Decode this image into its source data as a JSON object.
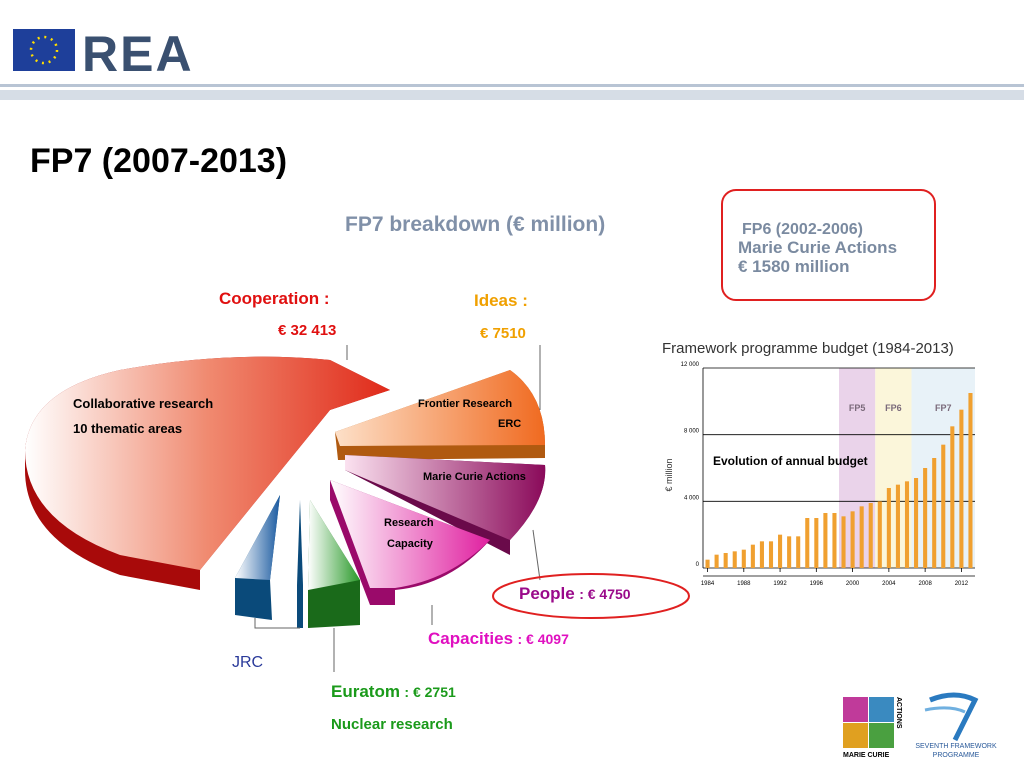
{
  "header": {
    "logo_text": "REA"
  },
  "title": "FP7 (2007-2013)",
  "breakdown_title": "FP7 breakdown (€ million)",
  "fp6_box": {
    "line1": "FP6 (2002-2006)",
    "line2": "Marie Curie Actions",
    "line3": "€ 1580 million"
  },
  "pie": {
    "cooperation": {
      "label": "Cooperation :",
      "amount": "€ 32 413",
      "inner1": "Collaborative research",
      "inner2": "10 thematic areas"
    },
    "ideas": {
      "label": "Ideas :",
      "amount": "€ 7510",
      "inner1": "Frontier Research",
      "inner2": "ERC"
    },
    "people": {
      "label": "People",
      "amount": ": € 4750",
      "inner": "Marie Curie Actions"
    },
    "capacities": {
      "label": "Capacities",
      "amount": ": € 4097",
      "inner1": "Research",
      "inner2": "Capacity"
    },
    "euratom": {
      "label": "Euratom",
      "amount": ": € 2751",
      "sub": "Nuclear research"
    },
    "jrc": {
      "label": "JRC"
    }
  },
  "chart_data": {
    "type": "bar",
    "title": "Framework programme budget (1984-2013)",
    "y_label": "€ million",
    "annotation": "Evolution of annual budget",
    "x": [
      1984,
      1985,
      1986,
      1987,
      1988,
      1989,
      1990,
      1991,
      1992,
      1993,
      1994,
      1995,
      1996,
      1997,
      1998,
      1999,
      2000,
      2001,
      2002,
      2003,
      2004,
      2005,
      2006,
      2007,
      2008,
      2009,
      2010,
      2011,
      2012,
      2013
    ],
    "values": [
      500,
      800,
      900,
      1000,
      1100,
      1400,
      1600,
      1600,
      2000,
      1900,
      1900,
      3000,
      3000,
      3300,
      3300,
      3100,
      3400,
      3700,
      3900,
      4000,
      4800,
      5000,
      5200,
      5400,
      6000,
      6600,
      7400,
      8500,
      9500,
      10500
    ],
    "color": "#f0a030",
    "xlim": [
      1983.5,
      2013.5
    ],
    "xticks": [
      1984,
      1988,
      1992,
      1996,
      2000,
      2004,
      2008,
      2012
    ],
    "ylim": [
      0,
      12000
    ],
    "yticks": [
      0,
      {
        "value": 4000,
        "label": "4 000"
      },
      {
        "value": 8000,
        "label": "8 000"
      },
      {
        "value": 12000,
        "label": "12 000"
      }
    ],
    "grid": true,
    "bands": [
      {
        "label": "FP5",
        "range": [
          1998.5,
          2002.5
        ],
        "color": "#ead3ea"
      },
      {
        "label": "FP6",
        "range": [
          2002.5,
          2006.5
        ],
        "color": "#fbf6da"
      },
      {
        "label": "FP7",
        "range": [
          2006.5,
          2013.5
        ],
        "color": "#e8f2f8"
      }
    ]
  },
  "logos": {
    "mc1": "MARIE CURIE",
    "mc2": "ACTIONS",
    "fp1": "SEVENTH FRAMEWORK",
    "fp2": "PROGRAMME"
  }
}
